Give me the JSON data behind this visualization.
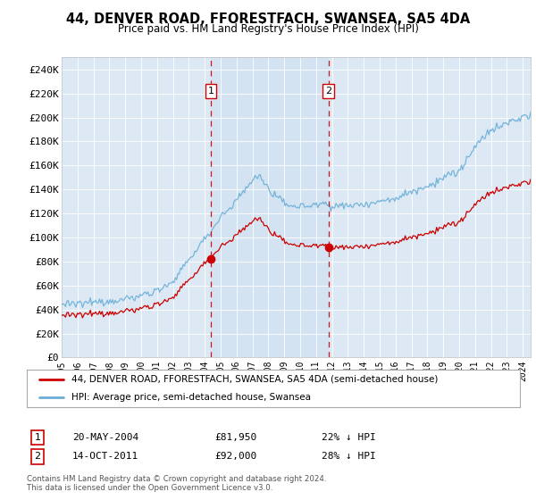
{
  "title": "44, DENVER ROAD, FFORESTFACH, SWANSEA, SA5 4DA",
  "subtitle": "Price paid vs. HM Land Registry's House Price Index (HPI)",
  "background_color": "#dce9f5",
  "outer_bg_color": "#ffffff",
  "hpi_color": "#6aaed6",
  "price_color": "#cc0000",
  "dashed_color": "#cc0000",
  "highlight_color": "#cfe0f0",
  "sale1_date": "20-MAY-2004",
  "sale1_price": "£81,950",
  "sale1_pct": "22% ↓ HPI",
  "sale1_x": 2004.38,
  "sale1_y": 81950,
  "sale2_date": "14-OCT-2011",
  "sale2_price": "£92,000",
  "sale2_pct": "28% ↓ HPI",
  "sale2_x": 2011.79,
  "sale2_y": 92000,
  "legend_label1": "44, DENVER ROAD, FFORESTFACH, SWANSEA, SA5 4DA (semi-detached house)",
  "legend_label2": "HPI: Average price, semi-detached house, Swansea",
  "footer": "Contains HM Land Registry data © Crown copyright and database right 2024.\nThis data is licensed under the Open Government Licence v3.0.",
  "yticks": [
    0,
    20000,
    40000,
    60000,
    80000,
    100000,
    120000,
    140000,
    160000,
    180000,
    200000,
    220000,
    240000
  ],
  "ylim": [
    0,
    250000
  ],
  "xlim_min": 1995,
  "xlim_max": 2024.5
}
